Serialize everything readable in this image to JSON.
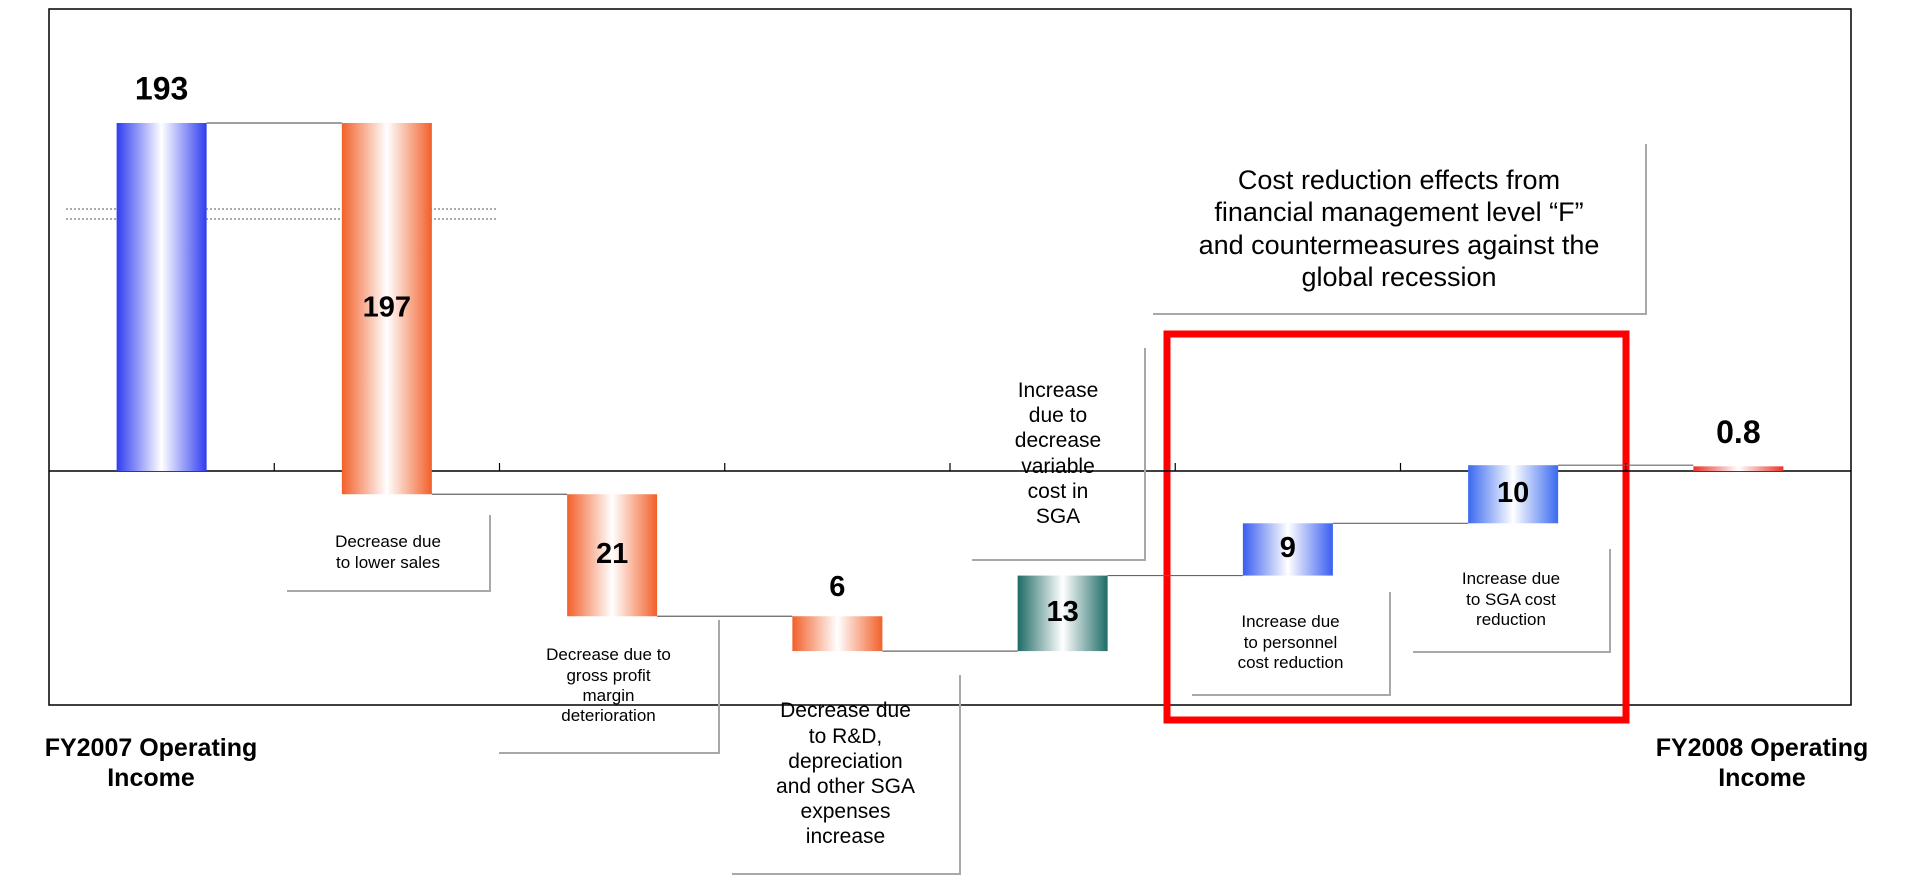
{
  "chart_data": {
    "type": "waterfall",
    "categories": [
      "FY2007 Operating Income",
      "Decrease due to lower sales",
      "Decrease due to gross profit margin deterioration",
      "Decrease due to R&D, depreciation and other SGA expenses increase",
      "Increase due to decrease variable cost in SGA",
      "Increase due to personnel cost reduction",
      "Increase due to SGA cost reduction",
      "FY2008 Operating Income"
    ],
    "values": [
      193,
      197,
      21,
      6,
      13,
      9,
      10,
      0.8
    ],
    "kinds": [
      "total",
      "decrease",
      "decrease",
      "decrease",
      "increase",
      "increase",
      "increase",
      "total"
    ],
    "colors": [
      "#2f3cf0",
      "#f2602a",
      "#f2602a",
      "#f2602a",
      "#1f6b66",
      "#3a5ef0",
      "#3a6af0",
      "#e8332a"
    ],
    "annotation": "Cost reduction effects from financial management level “F” and countermeasures against the global recession",
    "axis_break": true
  }
}
